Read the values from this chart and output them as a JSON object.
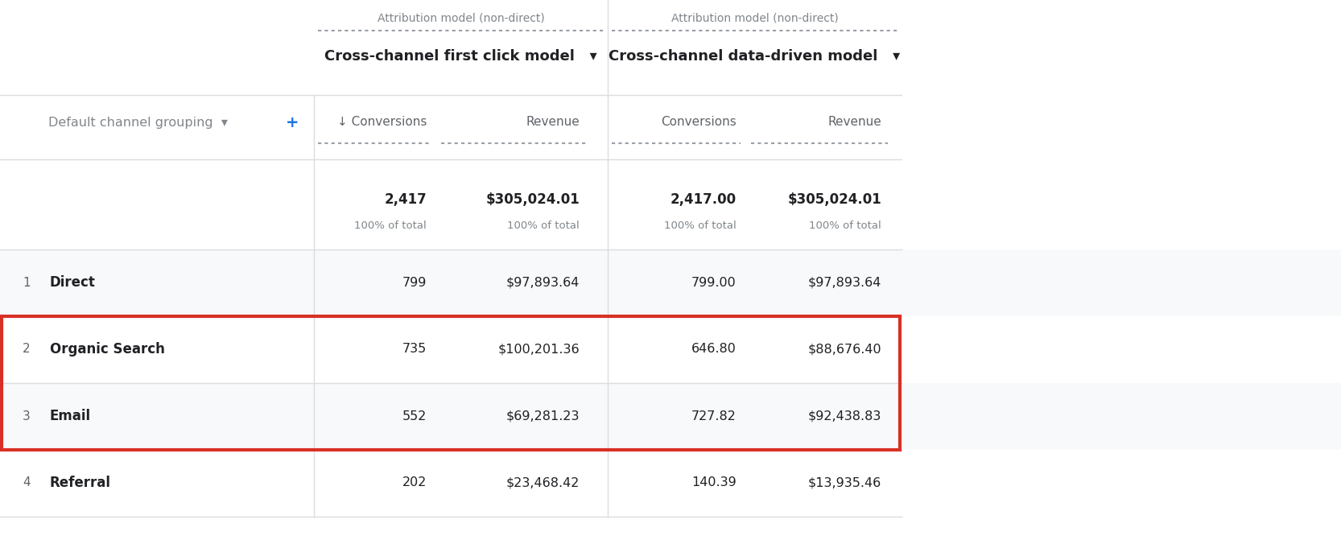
{
  "bg_color": "#ffffff",
  "row_bg_odd": "#f8f9fa",
  "row_bg_even": "#ffffff",
  "highlight_border_color": "#d93025",
  "grid_color": "#dadce0",
  "text_dark": "#202124",
  "text_gray": "#80868b",
  "text_med": "#5f6368",
  "blue_plus": "#1a73e8",
  "model1_label": "Attribution model (non-direct)",
  "model1_sublabel": "Cross-channel first click model",
  "model2_label": "Attribution model (non-direct)",
  "model2_sublabel": "Cross-channel data-driven model",
  "channel_grouping_label": "Default channel grouping",
  "col_conv1": "↓ Conversions",
  "col_rev1": "Revenue",
  "col_conv2": "Conversions",
  "col_rev2": "Revenue",
  "total_conv1": "2,417",
  "total_rev1": "$305,024.01",
  "total_conv2": "2,417.00",
  "total_rev2": "$305,024.01",
  "total_pct": "100% of total",
  "rows": [
    {
      "rank": "1",
      "channel": "Direct",
      "conv1": "799",
      "rev1": "$97,893.64",
      "conv2": "799.00",
      "rev2": "$97,893.64",
      "highlighted": false
    },
    {
      "rank": "2",
      "channel": "Organic Search",
      "conv1": "735",
      "rev1": "$100,201.36",
      "conv2": "646.80",
      "rev2": "$88,676.40",
      "highlighted": true
    },
    {
      "rank": "3",
      "channel": "Email",
      "conv1": "552",
      "rev1": "$69,281.23",
      "conv2": "727.82",
      "rev2": "$92,438.83",
      "highlighted": true
    },
    {
      "rank": "4",
      "channel": "Referral",
      "conv1": "202",
      "rev1": "$23,468.42",
      "conv2": "140.39",
      "rev2": "$13,935.46",
      "highlighted": false
    }
  ]
}
